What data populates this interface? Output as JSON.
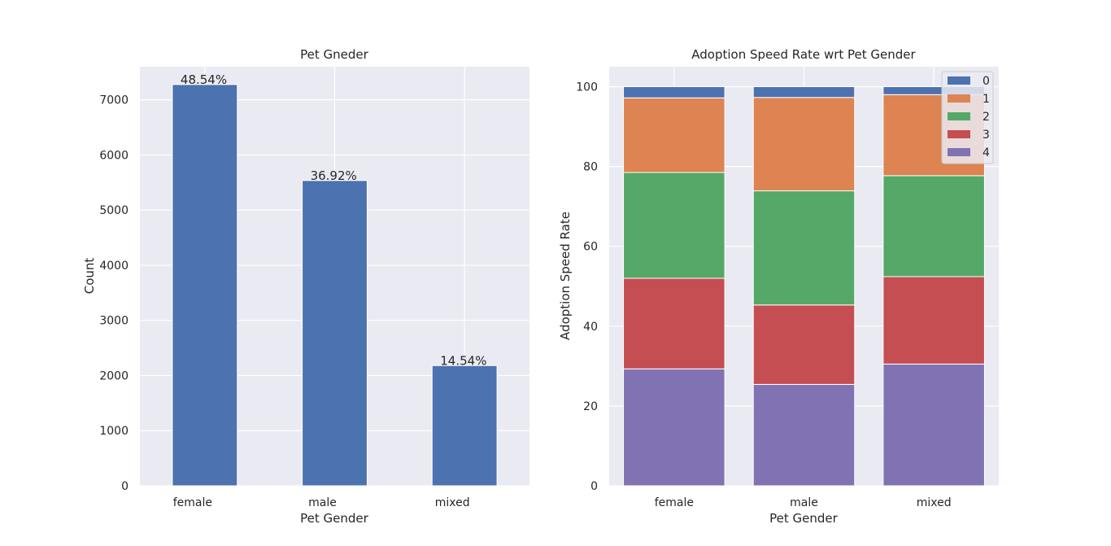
{
  "chart_data": [
    {
      "type": "bar",
      "title": "Pet Gneder",
      "xlabel": "Pet Gender",
      "ylabel": "Count",
      "categories": [
        "female",
        "male",
        "mixed"
      ],
      "values": [
        7277,
        5536,
        2180
      ],
      "data_labels": [
        "48.54%",
        "36.92%",
        "14.54%"
      ],
      "ylim": [
        0,
        7600
      ],
      "yticks": [
        0,
        1000,
        2000,
        3000,
        4000,
        5000,
        6000,
        7000
      ],
      "grid": true,
      "color": "#4c72b0"
    },
    {
      "type": "bar",
      "stacked": true,
      "title": "Adoption Speed Rate wrt Pet Gender",
      "xlabel": "Pet Gender",
      "ylabel": "Adoption Speed Rate",
      "categories": [
        "female",
        "male",
        "mixed"
      ],
      "ylim": [
        0,
        105
      ],
      "yticks": [
        0,
        20,
        40,
        60,
        80,
        100
      ],
      "grid": true,
      "legend_position": "top-right",
      "series": [
        {
          "name": "4",
          "values": [
            29.3,
            25.4,
            30.5
          ],
          "color": "#8172b3"
        },
        {
          "name": "3",
          "values": [
            22.7,
            19.9,
            21.9
          ],
          "color": "#c44e52"
        },
        {
          "name": "2",
          "values": [
            26.5,
            28.6,
            25.3
          ],
          "color": "#55a868"
        },
        {
          "name": "1",
          "values": [
            18.7,
            23.4,
            20.3
          ],
          "color": "#dd8452"
        },
        {
          "name": "0",
          "values": [
            2.8,
            2.7,
            2.0
          ],
          "color": "#4c72b0"
        }
      ],
      "legend_order": [
        "0",
        "1",
        "2",
        "3",
        "4"
      ]
    }
  ]
}
